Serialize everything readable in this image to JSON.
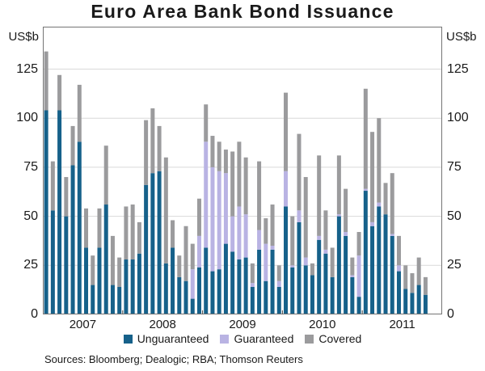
{
  "header": {
    "title": "Euro Area Bank Bond Issuance"
  },
  "axes": {
    "unit_left": "US$b",
    "unit_right": "US$b"
  },
  "footer": {
    "sources": "Sources: Bloomberg; Dealogic; RBA; Thomson Reuters"
  },
  "chart_data": {
    "type": "bar",
    "stacked": true,
    "title": "Euro Area Bank Bond Issuance",
    "unit": "US$b",
    "ylabel_left": "US$b",
    "ylabel_right": "US$b",
    "ylim": [
      0,
      146
    ],
    "yticks": [
      0,
      25,
      50,
      75,
      100,
      125
    ],
    "grid": true,
    "legend_position": "bottom",
    "x_year_labels": [
      "2007",
      "2008",
      "2009",
      "2010",
      "2011"
    ],
    "x_axis_span_months": 60,
    "categories": [
      "Jan 2007",
      "Feb 2007",
      "Mar 2007",
      "Apr 2007",
      "May 2007",
      "Jun 2007",
      "Jul 2007",
      "Aug 2007",
      "Sep 2007",
      "Oct 2007",
      "Nov 2007",
      "Dec 2007",
      "Jan 2008",
      "Feb 2008",
      "Mar 2008",
      "Apr 2008",
      "May 2008",
      "Jun 2008",
      "Jul 2008",
      "Aug 2008",
      "Sep 2008",
      "Oct 2008",
      "Nov 2008",
      "Dec 2008",
      "Jan 2009",
      "Feb 2009",
      "Mar 2009",
      "Apr 2009",
      "May 2009",
      "Jun 2009",
      "Jul 2009",
      "Aug 2009",
      "Sep 2009",
      "Oct 2009",
      "Nov 2009",
      "Dec 2009",
      "Jan 2010",
      "Feb 2010",
      "Mar 2010",
      "Apr 2010",
      "May 2010",
      "Jun 2010",
      "Jul 2010",
      "Aug 2010",
      "Sep 2010",
      "Oct 2010",
      "Nov 2010",
      "Dec 2010",
      "Jan 2011",
      "Feb 2011",
      "Mar 2011",
      "Apr 2011",
      "May 2011",
      "Jun 2011",
      "Jul 2011",
      "Aug 2011",
      "Sep 2011",
      "Oct 2011"
    ],
    "series": [
      {
        "name": "Unguaranteed",
        "color": "#16618a",
        "values": [
          104,
          53,
          104,
          50,
          76,
          88,
          34,
          15,
          34,
          56,
          15,
          14,
          28,
          28,
          31,
          66,
          72,
          73,
          26,
          34,
          19,
          17,
          8,
          24,
          34,
          22,
          23,
          36,
          32,
          28,
          29,
          14,
          33,
          17,
          33,
          14,
          55,
          24,
          47,
          25,
          20,
          38,
          31,
          19,
          50,
          40,
          19,
          9,
          63,
          45,
          55,
          51,
          40,
          22,
          13,
          11,
          15,
          10
        ]
      },
      {
        "name": "Guaranteed",
        "color": "#b9b3e3",
        "values": [
          0,
          0,
          0,
          0,
          0,
          0,
          0,
          0,
          0,
          0,
          0,
          0,
          0,
          0,
          0,
          0,
          0,
          0,
          0,
          0,
          0,
          0,
          15,
          16,
          54,
          53,
          50,
          36,
          18,
          27,
          22,
          2,
          10,
          19,
          2,
          3,
          18,
          1,
          6,
          4,
          0,
          2,
          2,
          0,
          1,
          2,
          1,
          21,
          1,
          2,
          2,
          0,
          1,
          3,
          0,
          0,
          0,
          0
        ]
      },
      {
        "name": "Covered",
        "color": "#9b9b9d",
        "values": [
          30,
          25,
          18,
          20,
          20,
          29,
          20,
          15,
          20,
          30,
          25,
          15,
          27,
          28,
          16,
          33,
          33,
          23,
          54,
          14,
          11,
          28,
          13,
          19,
          19,
          16,
          15,
          12,
          33,
          33,
          29,
          10,
          35,
          13,
          21,
          8,
          40,
          25,
          39,
          41,
          6,
          41,
          20,
          15,
          30,
          22,
          9,
          12,
          51,
          46,
          43,
          16,
          31,
          15,
          12,
          10,
          14,
          9
        ]
      }
    ]
  }
}
